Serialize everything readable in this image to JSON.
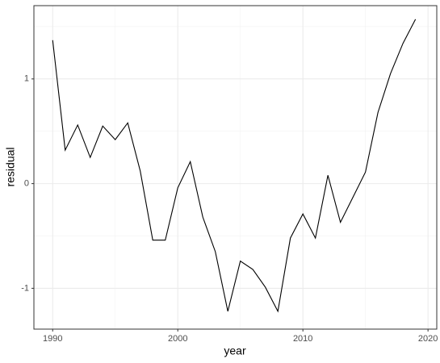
{
  "chart_data": {
    "type": "line",
    "x_label": "year",
    "y_label": "residual",
    "x": [
      1990,
      1991,
      1992,
      1993,
      1994,
      1995,
      1996,
      1997,
      1998,
      1999,
      2000,
      2001,
      2002,
      2003,
      2004,
      2005,
      2006,
      2007,
      2008,
      2009,
      2010,
      2011,
      2012,
      2013,
      2014,
      2015,
      2016,
      2017,
      2018,
      2019
    ],
    "series": [
      {
        "name": "residual",
        "color": "#000000",
        "values": [
          1.37,
          0.32,
          0.56,
          0.25,
          0.55,
          0.42,
          0.58,
          0.12,
          -0.54,
          -0.54,
          -0.04,
          0.21,
          -0.32,
          -0.65,
          -1.22,
          -0.74,
          -0.82,
          -0.99,
          -1.22,
          -0.52,
          -0.29,
          -0.52,
          0.08,
          -0.37,
          -0.13,
          0.11,
          0.68,
          1.05,
          1.34,
          1.57
        ]
      }
    ],
    "xlim": [
      1988.5,
      2020.7
    ],
    "xticks": [
      1990,
      2000,
      2010,
      2020
    ],
    "ylim": [
      -1.39,
      1.7
    ],
    "yticks": [
      -1,
      0,
      1
    ],
    "grid": true
  }
}
